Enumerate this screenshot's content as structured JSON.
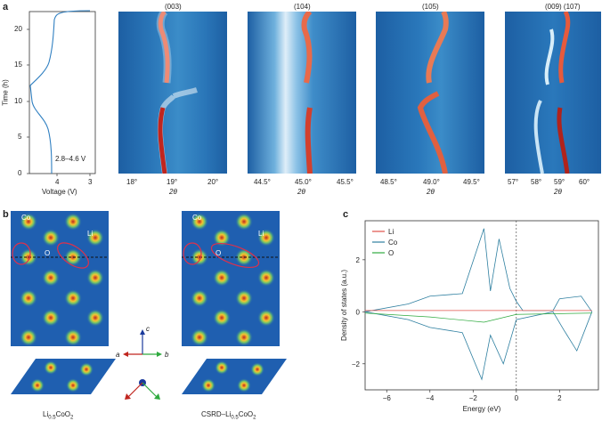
{
  "panels": {
    "a": {
      "letter": "a",
      "voltage_plot": {
        "ylabel": "Time (h)",
        "xlabel": "Voltage (V)",
        "yticks": [
          "0",
          "5",
          "10",
          "15",
          "20"
        ],
        "xticks": [
          "3",
          "4"
        ],
        "annotation": "2.8–4.6 V"
      },
      "maps": [
        {
          "peak": "(003)",
          "xticks": [
            "18°",
            "19°",
            "20°"
          ],
          "xlabel": "2θ"
        },
        {
          "peak": "(104)",
          "xticks": [
            "44.5°",
            "45.0°",
            "45.5°"
          ],
          "xlabel": "2θ"
        },
        {
          "peak": "(105)",
          "xticks": [
            "48.5°",
            "49.0°",
            "49.5°"
          ],
          "xlabel": "2θ"
        },
        {
          "peak": "(009)  (107)",
          "xticks": [
            "57°",
            "58°",
            "59°",
            "60°"
          ],
          "xlabel": "2θ"
        }
      ]
    },
    "b": {
      "letter": "b",
      "left": {
        "caption": "Li",
        "caption_sub": "0.5",
        "caption_end": "CoO",
        "caption_sub2": "2"
      },
      "right": {
        "caption": "CSRD–Li",
        "caption_sub": "0.5",
        "caption_end": "CoO",
        "caption_sub2": "2"
      },
      "atom_labels": {
        "co": "Co",
        "o": "O",
        "li": "Li"
      },
      "axes": {
        "a": "a",
        "b": "b",
        "c": "c"
      }
    },
    "c": {
      "letter": "c",
      "chart_data": {
        "type": "line",
        "xlabel": "Energy (eV)",
        "ylabel": "Density of states (a.u.)",
        "xlim": [
          -7,
          3.8
        ],
        "ylim": [
          -3,
          3.5
        ],
        "xticks": [
          -6,
          -4,
          -2,
          0,
          2
        ],
        "yticks": [
          -2,
          0,
          2
        ],
        "legend_position": "top-left",
        "series": [
          {
            "name": "Li",
            "color": "#e0504a"
          },
          {
            "name": "Co",
            "color": "#2e7fa0"
          },
          {
            "name": "O",
            "color": "#2eaa3e"
          }
        ]
      }
    }
  }
}
